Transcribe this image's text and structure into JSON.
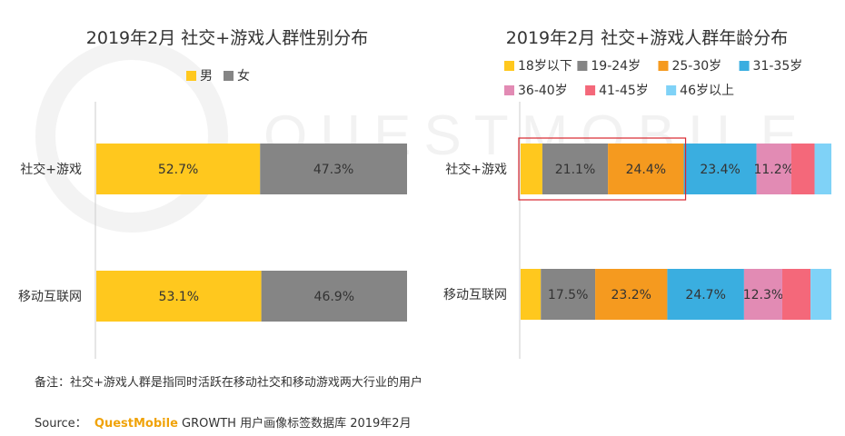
{
  "chart_data": [
    {
      "type": "bar",
      "orientation": "horizontal",
      "stacked": true,
      "percent": true,
      "title": "2019年2月 社交+游戏人群性别分布",
      "legend_position": "top",
      "categories": [
        "社交+游戏",
        "移动互联网"
      ],
      "series": [
        {
          "name": "男",
          "values": [
            52.7,
            53.1
          ],
          "labels": [
            "52.7%",
            "53.1%"
          ],
          "color": "#ffc81e"
        },
        {
          "name": "女",
          "values": [
            47.3,
            46.9
          ],
          "labels": [
            "47.3%",
            "46.9%"
          ],
          "color": "#858585"
        }
      ]
    },
    {
      "type": "bar",
      "orientation": "horizontal",
      "stacked": true,
      "percent": true,
      "title": "2019年2月 社交+游戏人群年龄分布",
      "legend_position": "top",
      "categories": [
        "社交+游戏",
        "移动互联网"
      ],
      "series": [
        {
          "name": "18岁以下",
          "values": [
            7.0,
            6.5
          ],
          "labels": [
            "",
            ""
          ],
          "color": "#ffc81e"
        },
        {
          "name": "19-24岁",
          "values": [
            21.1,
            17.5
          ],
          "labels": [
            "21.1%",
            "17.5%"
          ],
          "color": "#858585"
        },
        {
          "name": "25-30岁",
          "values": [
            24.4,
            23.2
          ],
          "labels": [
            "24.4%",
            "23.2%"
          ],
          "color": "#f59a1f"
        },
        {
          "name": "31-35岁",
          "values": [
            23.4,
            24.7
          ],
          "labels": [
            "23.4%",
            "24.7%"
          ],
          "color": "#3aaee0"
        },
        {
          "name": "36-40岁",
          "values": [
            11.2,
            12.3
          ],
          "labels": [
            "11.2%",
            "12.3%"
          ],
          "color": "#e28bb4"
        },
        {
          "name": "41-45岁",
          "values": [
            7.5,
            9.1
          ],
          "labels": [
            "",
            ""
          ],
          "color": "#f4687a"
        },
        {
          "name": "46岁以上",
          "values": [
            5.4,
            6.7
          ],
          "labels": [
            "",
            ""
          ],
          "color": "#7fd2f7"
        }
      ],
      "highlight": {
        "category": "社交+游戏",
        "series": [
          "18岁以下",
          "19-24岁",
          "25-30岁"
        ],
        "color": "#d9272e"
      }
    }
  ],
  "watermark": {
    "text": "QUESTMOBILE"
  },
  "footnote": {
    "note": "备注：社交+游戏人群是指同时活跃在移动社交和移动游戏两大行业的用户",
    "source_prefix": "Source：",
    "source_brand": "QuestMobile",
    "source_rest": " GROWTH 用户画像标签数据库 2019年2月"
  }
}
